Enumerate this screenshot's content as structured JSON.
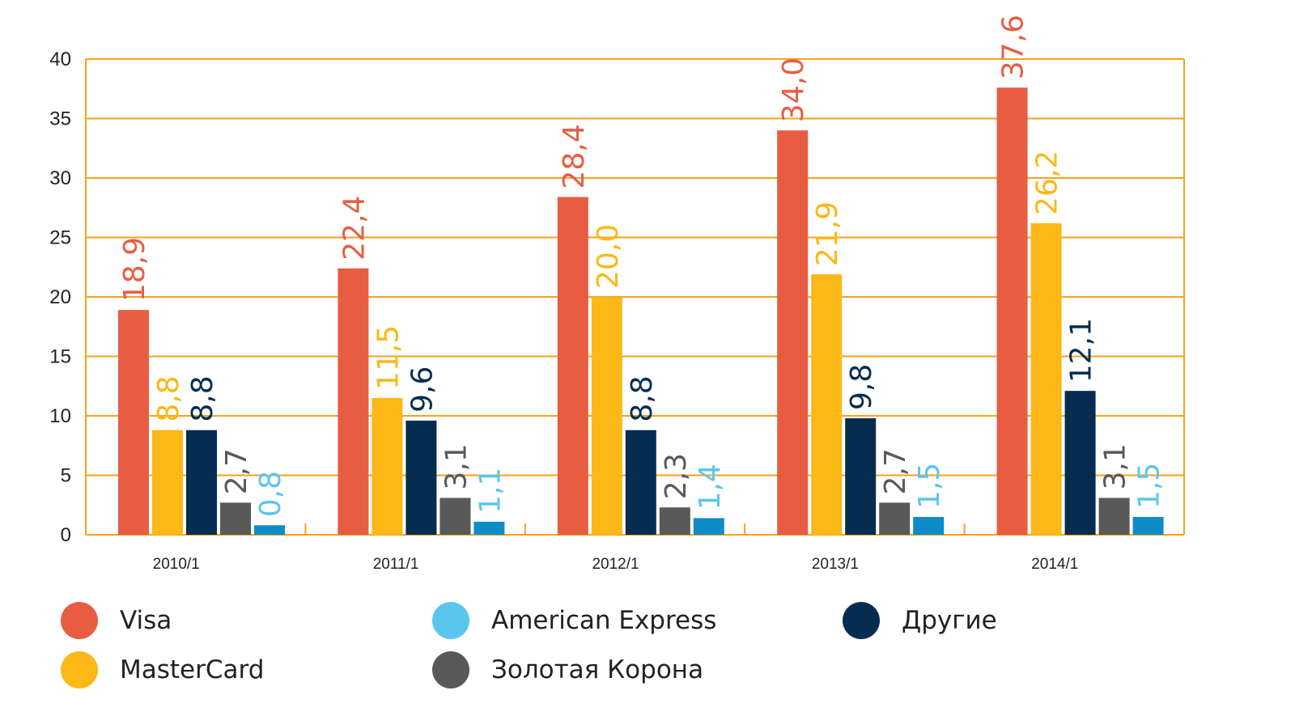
{
  "chart_data": {
    "type": "bar",
    "categories": [
      "2010/1",
      "2011/1",
      "2012/1",
      "2013/1",
      "2014/1"
    ],
    "series": [
      {
        "name": "Visa",
        "color": "#e85d41",
        "label_color": "#e85d41",
        "values": [
          18.9,
          22.4,
          28.4,
          34.0,
          37.6
        ],
        "labels": [
          "18,9",
          "22,4",
          "28,4",
          "34,0",
          "37,6"
        ]
      },
      {
        "name": "MasterCard",
        "color": "#fbb817",
        "label_color": "#fbb817",
        "values": [
          8.8,
          11.5,
          20.0,
          21.9,
          26.2
        ],
        "labels": [
          "8,8",
          "11,5",
          "20,0",
          "21,9",
          "26,2"
        ]
      },
      {
        "name": "Другие",
        "color": "#062d4f",
        "label_color": "#062d4f",
        "values": [
          8.8,
          9.6,
          8.8,
          9.8,
          12.1
        ],
        "labels": [
          "8,8",
          "9,6",
          "8,8",
          "9,8",
          "12,1"
        ]
      },
      {
        "name": "Золотая Корона",
        "color": "#595959",
        "label_color": "#595959",
        "values": [
          2.7,
          3.1,
          2.3,
          2.7,
          3.1
        ],
        "labels": [
          "2,7",
          "3,1",
          "2,3",
          "2,7",
          "3,1"
        ]
      },
      {
        "name": "American Express",
        "color": "#0d8cc8",
        "label_color": "#5bc6ed",
        "values": [
          0.8,
          1.1,
          1.4,
          1.5,
          1.5
        ],
        "labels": [
          "0,8",
          "1,1",
          "1,4",
          "1,5",
          "1,5"
        ]
      }
    ],
    "y_ticks": [
      "0",
      "5",
      "10",
      "15",
      "20",
      "25",
      "30",
      "35",
      "40"
    ],
    "ylim": [
      0,
      40
    ],
    "grid": true,
    "grid_color": "#f7a21b",
    "title": "",
    "xlabel": "",
    "ylabel": "",
    "legend_position": "bottom",
    "legend": [
      {
        "name": "Visa",
        "color": "#e85d41"
      },
      {
        "name": "American Express",
        "color": "#5bc6ed"
      },
      {
        "name": "Другие",
        "color": "#062d4f"
      },
      {
        "name": "MasterCard",
        "color": "#fbb817"
      },
      {
        "name": "Золотая Корона",
        "color": "#595959"
      }
    ]
  }
}
